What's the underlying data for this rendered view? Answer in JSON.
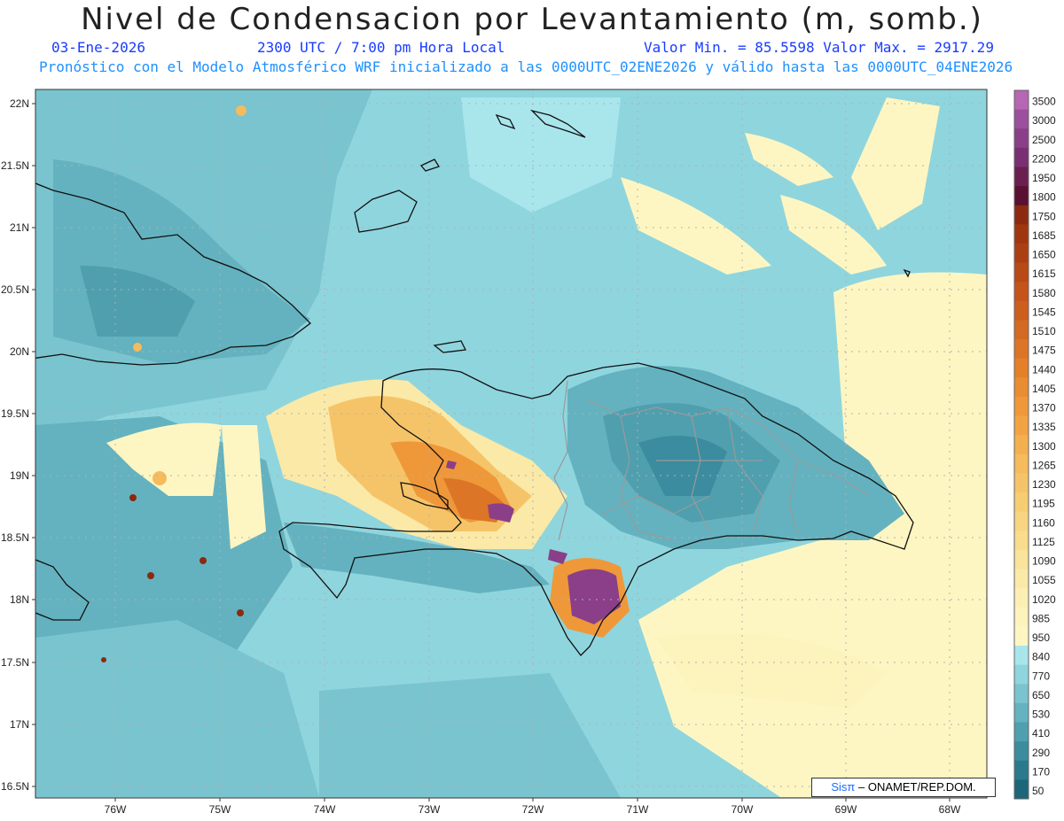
{
  "header": {
    "title": "Nivel de Condensacion por Levantamiento (m, somb.)",
    "date": "03-Ene-2026",
    "time": "2300 UTC / 7:00 pm Hora Local",
    "minmax": "Valor Min. = 85.5598  Valor Max. = 2917.29",
    "forecast": "Pronóstico con el Modelo Atmosférico WRF inicializado a las 0000UTC_02ENE2026 y válido hasta las  0000UTC_04ENE2026"
  },
  "axes": {
    "lat_labels": [
      "22N",
      "21.5N",
      "21N",
      "20.5N",
      "20N",
      "19.5N",
      "19N",
      "18.5N",
      "18N",
      "17.5N",
      "17N",
      "16.5N"
    ],
    "lon_labels": [
      "76W",
      "75W",
      "74W",
      "73W",
      "72W",
      "71W",
      "70W",
      "69W",
      "68W"
    ]
  },
  "legend": {
    "levels": [
      "3500",
      "3000",
      "2500",
      "2200",
      "1950",
      "1800",
      "1750",
      "1685",
      "1650",
      "1615",
      "1580",
      "1545",
      "1510",
      "1475",
      "1440",
      "1405",
      "1370",
      "1335",
      "1300",
      "1265",
      "1230",
      "1195",
      "1160",
      "1125",
      "1090",
      "1055",
      "1020",
      "985",
      "950",
      "840",
      "770",
      "650",
      "530",
      "410",
      "290",
      "170",
      "50"
    ],
    "colors": [
      "#b766b4",
      "#9b4f9c",
      "#8a3f88",
      "#7a2f72",
      "#6b1f50",
      "#5a1030",
      "#8b2a10",
      "#a0360f",
      "#ac3f12",
      "#b84a16",
      "#c4541a",
      "#cc5e1e",
      "#d46a22",
      "#dc7526",
      "#e4802a",
      "#ea8c32",
      "#ef983a",
      "#f2a444",
      "#f4b050",
      "#f5bb5c",
      "#f6c468",
      "#f7cd74",
      "#f8d580",
      "#f9dc8c",
      "#fae39a",
      "#fbe9a8",
      "#fcefb4",
      "#fdf3bc",
      "#fef6c2",
      "#a8e6ec",
      "#8fd5de",
      "#79c4cf",
      "#64b2bf",
      "#4f9faf",
      "#3b8c9e",
      "#2a798c",
      "#1c667a"
    ]
  },
  "credit": {
    "sis": "Sisπ",
    "rest": "– ONAMET/REP.DOM."
  },
  "colors": {
    "title": "#222222",
    "date_line": "#1a3cff",
    "forecast_line": "#1e90ff"
  }
}
